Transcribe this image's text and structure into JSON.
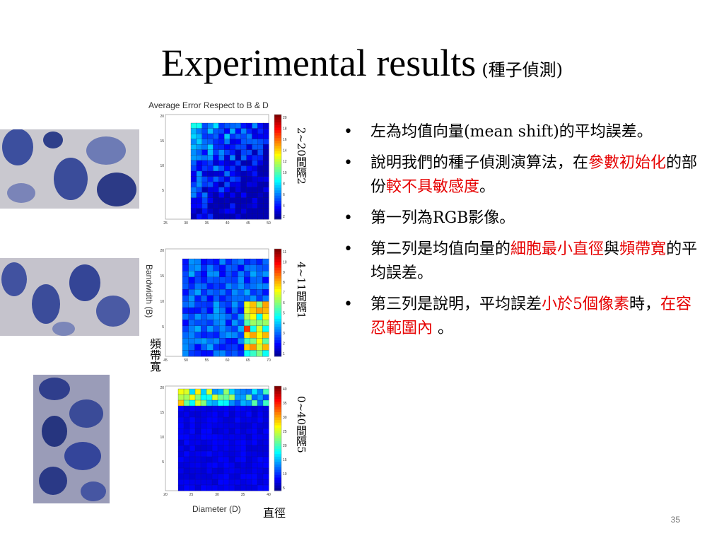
{
  "slide": {
    "title_main": "Experimental results",
    "title_sub": "(種子偵測)",
    "page_number": "35"
  },
  "figure": {
    "heatmap_title": "Average Error Respect to B & D",
    "ylabel": "Bandwidth (B)",
    "xlabel": "Diameter (D)",
    "ylabel_zh": "頻帶寬",
    "xlabel_zh": "直徑",
    "notes": [
      "2~20間隔2",
      "4~11間隔1",
      "0~40間隔5"
    ],
    "colors": {
      "low": "#0a1fb8",
      "mid": "#2f8fe8",
      "high": "#e83010"
    }
  },
  "chart_data": [
    {
      "type": "heatmap",
      "row": 1,
      "xlim": [
        25,
        50
      ],
      "ylim": [
        0,
        20
      ],
      "xticks": [
        "25",
        "30",
        "35",
        "40",
        "45",
        "50"
      ],
      "yticks": [
        "20",
        "15",
        "10",
        "5"
      ],
      "colorbar_ticks": [
        "20",
        "18",
        "16",
        "14",
        "12",
        "10",
        "8",
        "6",
        "4",
        "2"
      ]
    },
    {
      "type": "heatmap",
      "row": 2,
      "xlim": [
        45,
        70
      ],
      "ylim": [
        0,
        20
      ],
      "xticks": [
        "45",
        "50",
        "55",
        "60",
        "65",
        "70"
      ],
      "yticks": [
        "20",
        "15",
        "10",
        "5"
      ],
      "colorbar_ticks": [
        "11",
        "10",
        "9",
        "8",
        "7",
        "6",
        "5",
        "4",
        "3",
        "2",
        "1"
      ]
    },
    {
      "type": "heatmap",
      "row": 3,
      "xlim": [
        20,
        40
      ],
      "ylim": [
        0,
        20
      ],
      "xticks": [
        "20",
        "25",
        "30",
        "35",
        "40"
      ],
      "yticks": [
        "20",
        "15",
        "10",
        "5"
      ],
      "colorbar_ticks": [
        "40",
        "35",
        "30",
        "25",
        "20",
        "15",
        "10",
        "5"
      ]
    }
  ],
  "bullets": [
    {
      "segments": [
        {
          "text": "左為均值向量(mean shift)的平均誤差。",
          "red": false
        }
      ]
    },
    {
      "segments": [
        {
          "text": "說明我們的種子偵測演算法，在",
          "red": false
        },
        {
          "text": "參數初始化",
          "red": true
        },
        {
          "text": "的部份",
          "red": false
        },
        {
          "text": "較不具敏感度",
          "red": true
        },
        {
          "text": "。",
          "red": false
        }
      ]
    },
    {
      "segments": [
        {
          "text": "第一列為RGB影像。",
          "red": false
        }
      ]
    },
    {
      "segments": [
        {
          "text": "第二列是均值向量的",
          "red": false
        },
        {
          "text": "細胞最小直徑",
          "red": true
        },
        {
          "text": "與",
          "red": false
        },
        {
          "text": "頻帶寬",
          "red": true
        },
        {
          "text": "的平均誤差。",
          "red": false
        }
      ]
    },
    {
      "segments": [
        {
          "text": "第三列是說明，平均誤差",
          "red": false
        },
        {
          "text": "小於5個像素",
          "red": true
        },
        {
          "text": "時，",
          "red": false
        },
        {
          "text": "在容忍範圍內",
          "red": true
        },
        {
          "text": " 。",
          "red": false
        }
      ]
    }
  ]
}
